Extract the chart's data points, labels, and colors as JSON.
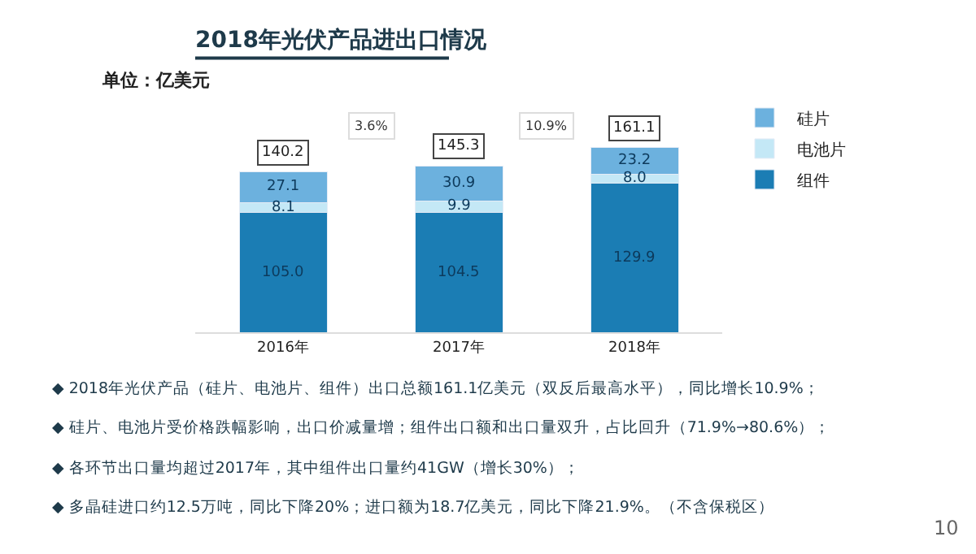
{
  "chart_data": {
    "type": "bar",
    "stacked": true,
    "title": "2018年光伏产品进出口情况",
    "subtitle": "单位：亿美元",
    "categories": [
      "2016年",
      "2017年",
      "2018年"
    ],
    "series": [
      {
        "name": "组件",
        "color": "#1b7db4",
        "values": [
          105.0,
          104.5,
          129.9
        ],
        "value_labels": [
          "105.0",
          "104.5",
          "129.9"
        ]
      },
      {
        "name": "电池片",
        "color": "#c4e8f6",
        "values": [
          8.1,
          9.9,
          8.0
        ],
        "value_labels": [
          "8.1",
          "9.9",
          "8.0"
        ]
      },
      {
        "name": "硅片",
        "color": "#6cb1de",
        "values": [
          27.1,
          30.9,
          23.2
        ],
        "value_labels": [
          "27.1",
          "30.9",
          "23.2"
        ]
      }
    ],
    "totals": [
      "140.2",
      "145.3",
      "161.1"
    ],
    "legend": "right",
    "annotations": [
      "3.6%",
      "10.9%",
      "◆ 2018年光伏产品（硅片、电池片、组件）出口总额161.1亿美元（双反后最高水平），同比增长10.9%；",
      "◆ 硅片、电池片受价格跌幅影响，出口价减量增；组件出口额和出口量双升，占比回升（71.9%→80.6%）；",
      "◆ 各环节出口量均超过2017年，其中组件出口量约41GW（增长30%）；",
      "◆ 多晶硅进口约12.5万吨，同比下降20%；进口额为18.7亿美元，同比下降21.9%。（不含保税区）",
      "10"
    ]
  }
}
